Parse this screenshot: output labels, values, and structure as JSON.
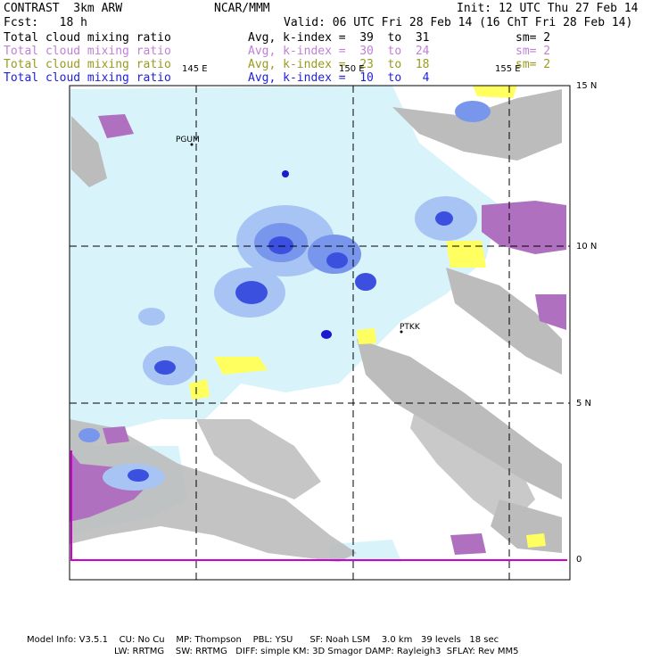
{
  "header": {
    "title": "CONTRAST  3km ARW",
    "org": "NCAR/MMM",
    "init": "Init: 12 UTC Thu 27 Feb 14",
    "fcst": "Fcst:   18 h",
    "valid": "Valid: 06 UTC Fri 28 Feb 14 (16 ChT Fri 28 Feb 14)"
  },
  "legend": [
    {
      "name": "Total cloud mixing ratio",
      "range": "Avg, k-index =  39  to  31",
      "sm": "sm= 2",
      "color": "#000000"
    },
    {
      "name": "Total cloud mixing ratio",
      "range": "Avg, k-index =  30  to  24",
      "sm": "sm= 2",
      "color": "#c080d8"
    },
    {
      "name": "Total cloud mixing ratio",
      "range": "Avg, k-index =  23  to  18",
      "sm": "sm= 2",
      "color": "#9a9a20"
    },
    {
      "name": "Total cloud mixing ratio",
      "range": "Avg, k-index =  10  to   4",
      "sm": "",
      "color": "#2020e0"
    }
  ],
  "axes": {
    "lon_labels": [
      "145 E",
      "150 E",
      "155 E"
    ],
    "lat_labels": [
      "15 N",
      "10 N",
      "5 N",
      "0"
    ]
  },
  "stations": [
    "PGUM",
    "PTKK"
  ],
  "footer": {
    "line1": "Model Info: V3.5.1    CU: No Cu    MP: Thompson    PBL: YSU      SF: Noah LSM    3.0 km   39 levels   18 sec",
    "line2": "LW: RRTMG    SW: RRTMG   DIFF: simple KM: 3D Smagor DAMP: Rayleigh3  SFLAY: Rev MM5"
  },
  "colors": {
    "cloud_light": "#d8f4fa",
    "cloud_blue_1": "#a8c4f4",
    "cloud_blue_2": "#7896ec",
    "cloud_blue_3": "#3c50e0",
    "cloud_blue_4": "#1a1ad0",
    "low_gray": "#bcbcbc",
    "mid_purple": "#b070c0",
    "mid_yellow": "#ffff60",
    "boundary": "#d000d0"
  }
}
